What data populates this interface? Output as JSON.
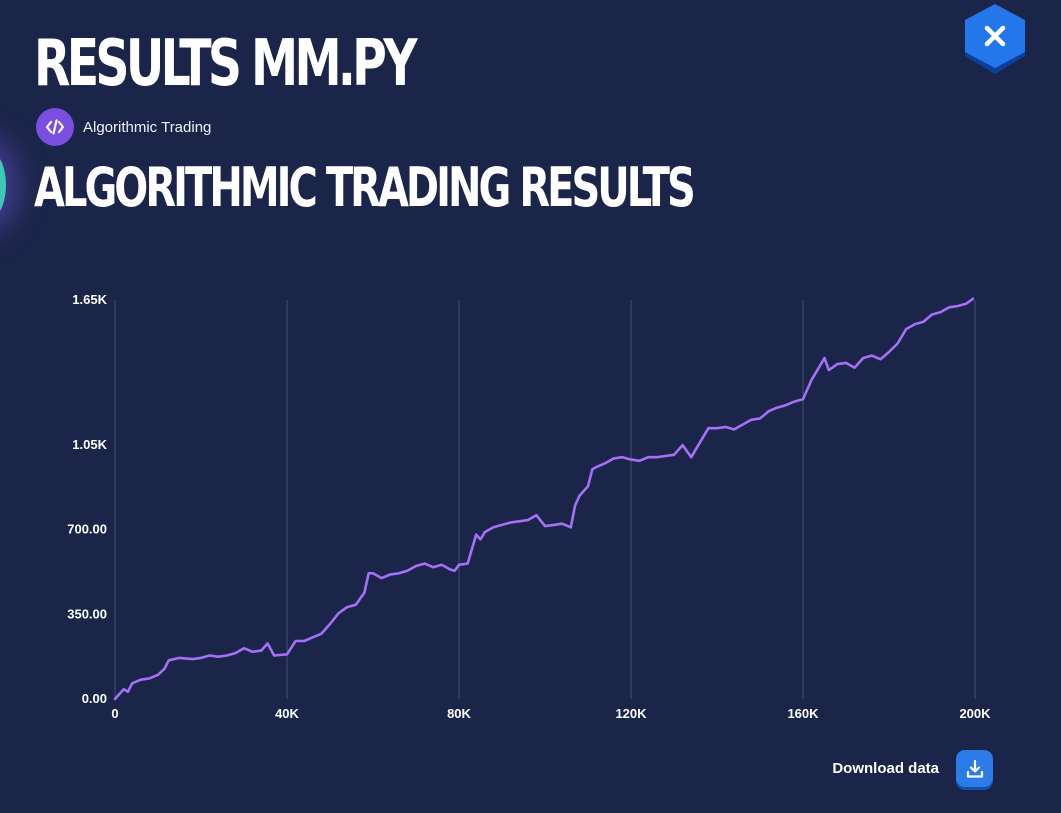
{
  "page": {
    "title": "RESULTS MM.PY",
    "category_label": "Algorithmic Trading",
    "section_title": "ALGORITHMIC TRADING RESULTS"
  },
  "icons": {
    "category": "code-icon",
    "close": "close-icon",
    "download": "download-icon"
  },
  "colors": {
    "background": "#1b2549",
    "line": "#a470f7",
    "accent": "#2b7be9",
    "category_badge": "#7a4fe0",
    "gridline": "#3b4668"
  },
  "actions": {
    "download_label": "Download data"
  },
  "chart_data": {
    "type": "line",
    "title": "",
    "xlabel": "",
    "ylabel": "",
    "grid": "vertical",
    "xlim": [
      0,
      200000
    ],
    "ylim": [
      0,
      1650
    ],
    "x_ticks": [
      0,
      40000,
      80000,
      120000,
      160000,
      200000
    ],
    "x_tick_labels": [
      "0",
      "40K",
      "80K",
      "120K",
      "160K",
      "200K"
    ],
    "y_ticks": [
      0,
      350,
      700,
      1050,
      1650
    ],
    "y_tick_labels": [
      "0.00",
      "350.00",
      "700.00",
      "1.05K",
      "1.65K"
    ],
    "series": [
      {
        "name": "",
        "x": [
          0,
          2000,
          3000,
          4000,
          6000,
          8000,
          10000,
          11500,
          12500,
          15000,
          18000,
          20000,
          22000,
          24000,
          26000,
          28000,
          30000,
          32000,
          34000,
          35500,
          37000,
          40000,
          42000,
          44000,
          46000,
          48000,
          50000,
          52000,
          54000,
          56000,
          58000,
          59000,
          60000,
          62000,
          64000,
          66000,
          68000,
          70000,
          72000,
          74000,
          76000,
          78000,
          79000,
          80000,
          82000,
          84000,
          85000,
          86000,
          88000,
          90000,
          92000,
          94000,
          96000,
          98000,
          100000,
          102000,
          104000,
          106000,
          107000,
          108000,
          110000,
          111000,
          112000,
          114000,
          116000,
          118000,
          120000,
          122000,
          124000,
          126000,
          128000,
          130000,
          132000,
          134000,
          136000,
          138000,
          140000,
          142000,
          144000,
          146000,
          148000,
          150000,
          152000,
          154000,
          156000,
          158000,
          160000,
          162000,
          164000,
          165000,
          166000,
          168000,
          170000,
          172000,
          174000,
          176000,
          178000,
          180000,
          182000,
          184000,
          186000,
          188000,
          190000,
          192000,
          194000,
          196000,
          198000,
          199500
        ],
        "y": [
          0,
          40,
          30,
          65,
          80,
          85,
          100,
          125,
          160,
          170,
          165,
          170,
          180,
          175,
          180,
          190,
          210,
          195,
          200,
          230,
          180,
          185,
          240,
          240,
          255,
          270,
          310,
          355,
          380,
          390,
          440,
          520,
          520,
          500,
          515,
          520,
          530,
          550,
          560,
          545,
          555,
          535,
          530,
          555,
          560,
          680,
          660,
          690,
          710,
          720,
          730,
          735,
          740,
          760,
          715,
          720,
          725,
          710,
          800,
          840,
          880,
          950,
          960,
          975,
          995,
          1000,
          990,
          985,
          1000,
          1000,
          1005,
          1010,
          1050,
          1000,
          1060,
          1120,
          1120,
          1125,
          1115,
          1135,
          1155,
          1160,
          1190,
          1205,
          1215,
          1230,
          1240,
          1320,
          1380,
          1410,
          1360,
          1385,
          1390,
          1370,
          1410,
          1420,
          1405,
          1435,
          1470,
          1530,
          1550,
          1560,
          1590,
          1600,
          1620,
          1625,
          1635,
          1655
        ]
      }
    ]
  }
}
